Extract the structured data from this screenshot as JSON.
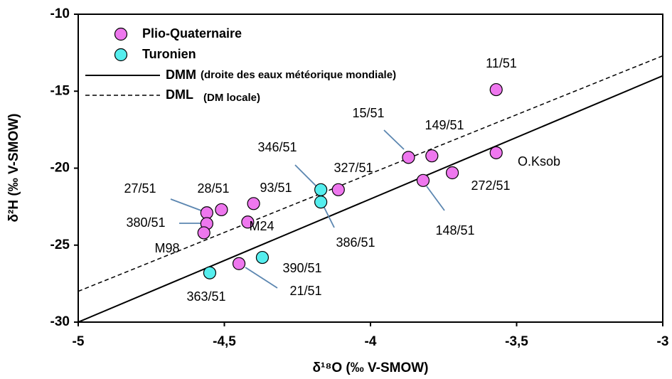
{
  "chart_data": {
    "type": "scatter",
    "x_label": "δ¹⁸O (‰ V-SMOW)",
    "y_label": "δ²H (‰ V-SMOW)",
    "xlim": [
      -5,
      -3
    ],
    "ylim": [
      -30,
      -10
    ],
    "xticks": [
      -5,
      {
        "value": -4.5,
        "label": "-4,5"
      },
      -4,
      {
        "value": -3.5,
        "label": "-3,5"
      },
      -3
    ],
    "yticks": [
      -30,
      -25,
      -20,
      -15,
      -10
    ],
    "series": [
      {
        "name": "Plio-Quaternaire",
        "color": "#ee77ee",
        "x": [
          -3.57,
          -3.87,
          -3.79,
          -3.57,
          -3.72,
          -3.82,
          -4.11,
          -4.4,
          -4.42,
          -4.51,
          -4.56,
          -4.56,
          -4.57,
          -4.45
        ],
        "values": [
          -14.9,
          -19.3,
          -19.2,
          -19.0,
          -20.3,
          -20.8,
          -21.4,
          -22.3,
          -23.5,
          -22.7,
          -22.9,
          -23.6,
          -24.2,
          -26.2
        ],
        "labels": [
          "11/51",
          "15/51",
          "149/51",
          "O.Ksob",
          "272/51",
          "148/51",
          "327/51",
          "93/51",
          "M24",
          "28/51",
          "27/51",
          "380/51",
          "M98",
          "21/51"
        ]
      },
      {
        "name": "Turonien",
        "color": "#55eeee",
        "x": [
          -4.17,
          -4.17,
          -4.37,
          -4.55
        ],
        "values": [
          -21.4,
          -22.2,
          -25.8,
          -26.8
        ],
        "labels": [
          "346/51",
          "386/51",
          "390/51",
          "363/51"
        ]
      }
    ],
    "lines": [
      {
        "name": "DMM",
        "note": "(droite des eaux météorique mondiale)",
        "dash": false,
        "x": [
          -5,
          -3
        ],
        "values": [
          -30,
          -14
        ]
      },
      {
        "name": "DML",
        "note": "(DM locale)",
        "dash": true,
        "x": [
          -5,
          -3
        ],
        "values": [
          -28.0,
          -12.7
        ]
      }
    ]
  }
}
